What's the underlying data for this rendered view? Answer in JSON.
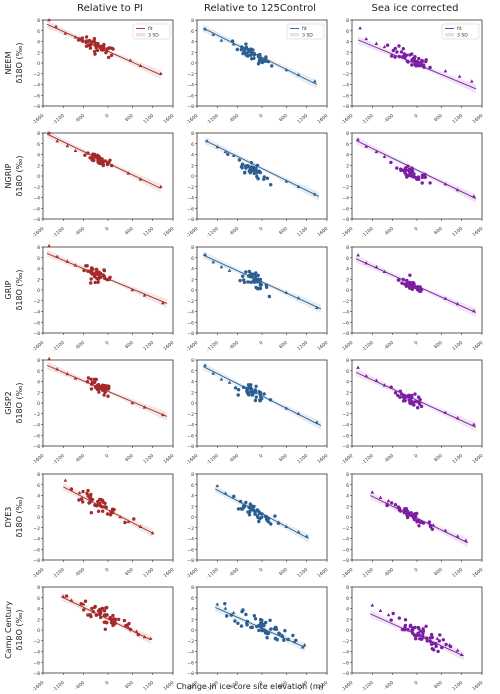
{
  "columns": [
    "Relative to PI",
    "Relative to 125Control",
    "Sea ice corrected"
  ],
  "rows": [
    "NEEM",
    "NGRIP",
    "GRIP",
    "GISP2",
    "DYE3",
    "Camp Century"
  ],
  "ylabel_suffix": "δ18O (‰)",
  "xlabel": "Change in ice core site elevation (m)",
  "colors": {
    "Relative to PI": "#a52a2a",
    "Relative to 125Control": "#2c5f91",
    "Sea ice corrected": "#7b1fa2"
  },
  "legend": {
    "fit": "fit",
    "sd": "3 SD"
  },
  "chart_data": {
    "type": "scatter",
    "xlim": [
      -1600,
      1600
    ],
    "ylim": [
      -8,
      8
    ],
    "xticks": [
      -1600,
      -1100,
      -600,
      0,
      600,
      1100,
      1600
    ],
    "xtick_labels": [
      "-1600",
      "-1100",
      "-600",
      "0",
      "600",
      "1100",
      "1600"
    ],
    "yticks": [
      -8,
      -6,
      -4,
      -2,
      0,
      2,
      4,
      6,
      8
    ],
    "ytick_labels": [
      "−8",
      "−6",
      "−4",
      "−2",
      "0",
      "2",
      "4",
      "6",
      "8"
    ],
    "legend_panels": [
      [
        0,
        0
      ],
      [
        0,
        1
      ],
      [
        0,
        2
      ]
    ],
    "panels": [
      [
        {
          "fit": [
            [
              -1500,
              7.2
            ],
            [
              1300,
              -2.2
            ]
          ],
          "tri": [
            [
              -1450,
              8
            ],
            [
              -1280,
              6.8
            ],
            [
              -1050,
              5.5
            ],
            [
              -800,
              4.8
            ],
            [
              550,
              0.5
            ],
            [
              800,
              -0.5
            ],
            [
              1300,
              -2.0
            ]
          ],
          "cloud": {
            "cx": -250,
            "cy": 3.0,
            "sx": 230,
            "sy": 1.1,
            "n": 45
          }
        },
        {
          "fit": [
            [
              -1450,
              6.5
            ],
            [
              1350,
              -4.0
            ]
          ],
          "tri": [
            [
              -1400,
              6.3
            ],
            [
              -1200,
              5.3
            ],
            [
              -1000,
              4.2
            ],
            [
              -700,
              3.5
            ],
            [
              600,
              -1.3
            ],
            [
              900,
              -2.2
            ],
            [
              1300,
              -3.4
            ]
          ],
          "cloud": {
            "cx": -250,
            "cy": 1.6,
            "sx": 230,
            "sy": 1.0,
            "n": 45
          }
        },
        {
          "fit": [
            [
              -1450,
              4.3
            ],
            [
              1450,
              -4.8
            ]
          ],
          "tri": [
            [
              -1400,
              6.5
            ],
            [
              -1250,
              4.5
            ],
            [
              -1000,
              3.6
            ],
            [
              -800,
              3.0
            ],
            [
              700,
              -1.5
            ],
            [
              1050,
              -2.5
            ],
            [
              1350,
              -3.4
            ]
          ],
          "cloud": {
            "cx": -150,
            "cy": 0.8,
            "sx": 250,
            "sy": 1.2,
            "n": 45
          }
        }
      ],
      [
        {
          "fit": [
            [
              -1500,
              7.8
            ],
            [
              1300,
              -2.3
            ]
          ],
          "tri": [
            [
              -1450,
              8.0
            ],
            [
              -1250,
              6.5
            ],
            [
              -1000,
              5.6
            ],
            [
              -800,
              4.7
            ],
            [
              500,
              0.5
            ],
            [
              800,
              -0.6
            ],
            [
              1300,
              -2.0
            ]
          ],
          "cloud": {
            "cx": -200,
            "cy": 3.0,
            "sx": 170,
            "sy": 1.0,
            "n": 40
          }
        },
        {
          "fit": [
            [
              -1400,
              6.6
            ],
            [
              1400,
              -3.8
            ]
          ],
          "tri": [
            [
              -1350,
              6.5
            ],
            [
              -1100,
              5.4
            ],
            [
              -900,
              4.5
            ],
            [
              -700,
              3.8
            ],
            [
              600,
              -1.0
            ],
            [
              900,
              -2.0
            ],
            [
              1300,
              -3.4
            ]
          ],
          "cloud": {
            "cx": -250,
            "cy": 1.2,
            "sx": 170,
            "sy": 1.0,
            "n": 40
          }
        },
        {
          "fit": [
            [
              -1500,
              6.6
            ],
            [
              1450,
              -4.2
            ]
          ],
          "tri": [
            [
              -1450,
              6.8
            ],
            [
              -1250,
              5.5
            ],
            [
              -1000,
              4.5
            ],
            [
              -800,
              3.6
            ],
            [
              700,
              -1.5
            ],
            [
              1000,
              -2.6
            ],
            [
              1400,
              -3.8
            ]
          ],
          "cloud": {
            "cx": -150,
            "cy": 0.6,
            "sx": 170,
            "sy": 1.0,
            "n": 40
          }
        }
      ],
      [
        {
          "fit": [
            [
              -1500,
              6.8
            ],
            [
              1450,
              -2.5
            ]
          ],
          "tri": [
            [
              -1450,
              8.2
            ],
            [
              -1250,
              6.2
            ],
            [
              -1000,
              5.3
            ],
            [
              -800,
              4.6
            ],
            [
              600,
              0.0
            ],
            [
              900,
              -1.0
            ],
            [
              1350,
              -2.4
            ]
          ],
          "cloud": {
            "cx": -250,
            "cy": 2.8,
            "sx": 170,
            "sy": 1.1,
            "n": 40
          }
        },
        {
          "fit": [
            [
              -1450,
              6.5
            ],
            [
              1450,
              -3.5
            ]
          ],
          "tri": [
            [
              -1400,
              6.6
            ],
            [
              -1200,
              5.2
            ],
            [
              -1000,
              4.3
            ],
            [
              -800,
              3.6
            ],
            [
              600,
              -0.5
            ],
            [
              900,
              -1.5
            ],
            [
              1350,
              -3.3
            ]
          ],
          "cloud": {
            "cx": -200,
            "cy": 1.8,
            "sx": 170,
            "sy": 1.2,
            "n": 40
          }
        },
        {
          "fit": [
            [
              -1500,
              5.8
            ],
            [
              1450,
              -4.2
            ]
          ],
          "tri": [
            [
              -1450,
              6.5
            ],
            [
              -1250,
              5.0
            ],
            [
              -1000,
              4.3
            ],
            [
              -800,
              3.4
            ],
            [
              700,
              -1.6
            ],
            [
              1000,
              -2.6
            ],
            [
              1400,
              -3.9
            ]
          ],
          "cloud": {
            "cx": -100,
            "cy": 0.7,
            "sx": 170,
            "sy": 1.0,
            "n": 40
          }
        }
      ],
      [
        {
          "fit": [
            [
              -1500,
              7.0
            ],
            [
              1450,
              -2.5
            ]
          ],
          "tri": [
            [
              -1450,
              8.2
            ],
            [
              -1250,
              6.3
            ],
            [
              -1000,
              5.4
            ],
            [
              -800,
              4.6
            ],
            [
              600,
              0.0
            ],
            [
              900,
              -0.8
            ],
            [
              1350,
              -2.2
            ]
          ],
          "cloud": {
            "cx": -250,
            "cy": 3.0,
            "sx": 170,
            "sy": 1.1,
            "n": 40
          }
        },
        {
          "fit": [
            [
              -1450,
              6.8
            ],
            [
              1450,
              -4.2
            ]
          ],
          "tri": [
            [
              -1400,
              7.0
            ],
            [
              -1200,
              5.5
            ],
            [
              -1000,
              4.4
            ],
            [
              -800,
              3.8
            ],
            [
              600,
              -1.0
            ],
            [
              900,
              -2.0
            ],
            [
              1350,
              -3.6
            ]
          ],
          "cloud": {
            "cx": -200,
            "cy": 1.7,
            "sx": 170,
            "sy": 1.2,
            "n": 40
          }
        },
        {
          "fit": [
            [
              -1500,
              5.7
            ],
            [
              1450,
              -4.5
            ]
          ],
          "tri": [
            [
              -1450,
              6.6
            ],
            [
              -1250,
              5.0
            ],
            [
              -1000,
              4.2
            ],
            [
              -800,
              3.3
            ],
            [
              700,
              -1.8
            ],
            [
              1000,
              -2.8
            ],
            [
              1400,
              -4.0
            ]
          ],
          "cloud": {
            "cx": -150,
            "cy": 0.7,
            "sx": 170,
            "sy": 1.0,
            "n": 40
          }
        }
      ],
      [
        {
          "fit": [
            [
              -1100,
              5.6
            ],
            [
              1100,
              -3.0
            ]
          ],
          "tri": [
            [
              -1050,
              6.8
            ],
            [
              -900,
              5.2
            ],
            [
              -700,
              4.5
            ],
            [
              300,
              0.0
            ],
            [
              500,
              -0.9
            ],
            [
              800,
              -1.8
            ],
            [
              1100,
              -3.0
            ]
          ],
          "cloud": {
            "cx": -250,
            "cy": 2.6,
            "sx": 280,
            "sy": 1.1,
            "n": 45
          }
        },
        {
          "fit": [
            [
              -1150,
              5.2
            ],
            [
              1150,
              -4.0
            ]
          ],
          "tri": [
            [
              -1100,
              5.8
            ],
            [
              -900,
              4.4
            ],
            [
              -700,
              3.8
            ],
            [
              400,
              -1.0
            ],
            [
              600,
              -1.8
            ],
            [
              900,
              -2.8
            ],
            [
              1100,
              -3.6
            ]
          ],
          "cloud": {
            "cx": -250,
            "cy": 1.2,
            "sx": 280,
            "sy": 1.1,
            "n": 45
          }
        },
        {
          "fit": [
            [
              -1150,
              4.0
            ],
            [
              1250,
              -4.8
            ]
          ],
          "tri": [
            [
              -1100,
              4.6
            ],
            [
              -900,
              3.6
            ],
            [
              -700,
              3.0
            ],
            [
              400,
              -1.5
            ],
            [
              700,
              -2.5
            ],
            [
              1000,
              -3.6
            ],
            [
              1200,
              -4.4
            ]
          ],
          "cloud": {
            "cx": -150,
            "cy": 0.2,
            "sx": 280,
            "sy": 1.1,
            "n": 45
          }
        }
      ],
      [
        {
          "fit": [
            [
              -1150,
              6.2
            ],
            [
              1050,
              -1.8
            ]
          ],
          "tri": [
            [
              -1100,
              6.2
            ],
            [
              -900,
              5.5
            ],
            [
              -600,
              4.8
            ],
            [
              500,
              0.5
            ],
            [
              700,
              -0.3
            ],
            [
              900,
              -1.3
            ],
            [
              1050,
              -1.6
            ]
          ],
          "cloud": {
            "cx": 0,
            "cy": 2.4,
            "sx": 350,
            "sy": 1.6,
            "n": 55
          }
        },
        {
          "fit": [
            [
              -1150,
              4.2
            ],
            [
              1050,
              -3.2
            ]
          ],
          "tri": [
            [
              -1100,
              4.8
            ],
            [
              -900,
              4.0
            ],
            [
              -700,
              3.2
            ],
            [
              500,
              -1.0
            ],
            [
              800,
              -2.2
            ],
            [
              1000,
              -3.2
            ],
            [
              1050,
              -2.8
            ]
          ],
          "cloud": {
            "cx": 0,
            "cy": 0.8,
            "sx": 350,
            "sy": 1.7,
            "n": 55
          }
        },
        {
          "fit": [
            [
              -1150,
              3.0
            ],
            [
              1150,
              -4.8
            ]
          ],
          "tri": [
            [
              -1100,
              4.6
            ],
            [
              -900,
              3.6
            ],
            [
              -700,
              2.8
            ],
            [
              500,
              -1.6
            ],
            [
              800,
              -2.8
            ],
            [
              1000,
              -3.8
            ],
            [
              1100,
              -4.6
            ]
          ],
          "cloud": {
            "cx": 0,
            "cy": -0.6,
            "sx": 350,
            "sy": 1.6,
            "n": 55
          }
        }
      ]
    ]
  }
}
